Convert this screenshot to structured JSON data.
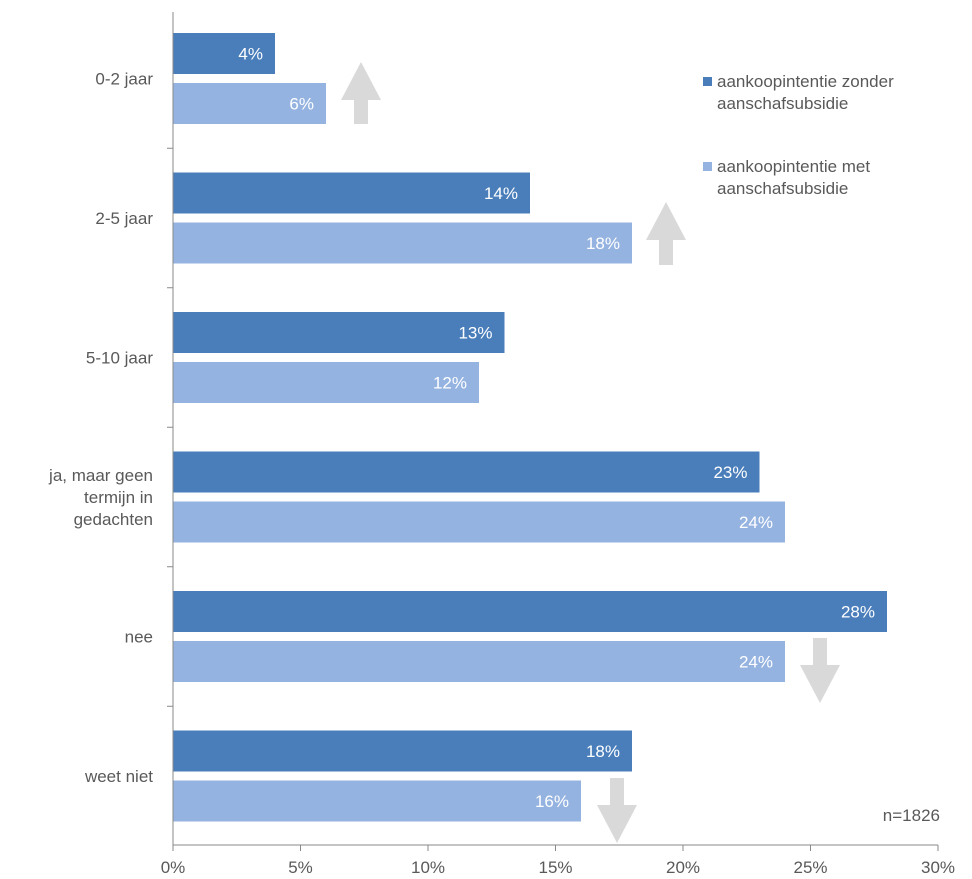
{
  "chart_data": {
    "type": "bar",
    "orientation": "horizontal",
    "categories": [
      [
        "0-2 jaar"
      ],
      [
        "2-5 jaar"
      ],
      [
        "5-10 jaar"
      ],
      [
        "ja, maar geen",
        "termijn in",
        "gedachten"
      ],
      [
        "nee"
      ],
      [
        "weet niet"
      ]
    ],
    "series": [
      {
        "name_lines": [
          "aankoopintentie zonder",
          "aanschafsubsidie"
        ],
        "color": "#4A7EBB",
        "values": [
          4,
          14,
          13,
          23,
          28,
          18
        ]
      },
      {
        "name_lines": [
          "aankoopintentie met",
          "aanschafsubsidie"
        ],
        "color": "#95B3E0",
        "values": [
          6,
          18,
          12,
          24,
          24,
          16
        ]
      }
    ],
    "value_suffix": "%",
    "xlim": [
      0,
      30
    ],
    "xticks": [
      0,
      5,
      10,
      15,
      20,
      25,
      30
    ],
    "xtick_labels": [
      "0%",
      "5%",
      "10%",
      "15%",
      "20%",
      "25%",
      "30%"
    ],
    "grid": false,
    "legend_position": "top-right",
    "annotation": "n=1826",
    "arrows": [
      {
        "category_index": 0,
        "direction": "up"
      },
      {
        "category_index": 1,
        "direction": "up"
      },
      {
        "category_index": 4,
        "direction": "down"
      },
      {
        "category_index": 5,
        "direction": "down"
      }
    ],
    "arrow_color": "#D9D9D9",
    "axis_color": "#888888",
    "text_color": "#595959"
  }
}
